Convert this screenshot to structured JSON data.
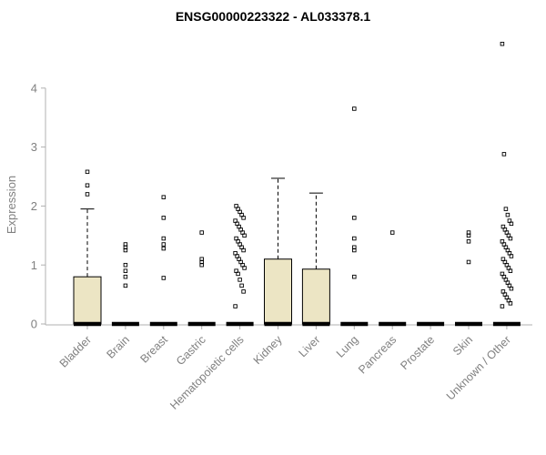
{
  "chart_data": {
    "type": "boxplot",
    "title": "ENSG00000223322 - AL033378.1",
    "ylabel": "Expression",
    "xlabel": "",
    "ylim": [
      0,
      4.9
    ],
    "yticks": [
      0,
      1,
      2,
      3,
      4
    ],
    "grid": false,
    "legend": "none",
    "box_fill": "#ece5c4",
    "box_stroke": "#000000",
    "axis_color": "#b0b0b0",
    "tick_label_color": "#808080",
    "categories": [
      "Bladder",
      "Brain",
      "Breast",
      "Gastric",
      "Hematopoietic cells",
      "Kidney",
      "Liver",
      "Lung",
      "Pancreas",
      "Prostate",
      "Skin",
      "Unknown / Other"
    ],
    "boxes": [
      {
        "category": "Bladder",
        "q1": 0,
        "median": 0,
        "q3": 0.8,
        "whisker_low": 0,
        "whisker_high": 1.95,
        "outliers": [
          2.2,
          2.35,
          2.58
        ]
      },
      {
        "category": "Brain",
        "q1": 0,
        "median": 0,
        "q3": 0,
        "whisker_low": 0,
        "whisker_high": 0,
        "outliers": [
          0.65,
          0.8,
          0.9,
          1.0,
          1.25,
          1.3,
          1.35
        ]
      },
      {
        "category": "Breast",
        "q1": 0,
        "median": 0,
        "q3": 0,
        "whisker_low": 0,
        "whisker_high": 0,
        "outliers": [
          0.78,
          1.28,
          1.35,
          1.45,
          1.8,
          2.15
        ]
      },
      {
        "category": "Gastric",
        "q1": 0,
        "median": 0,
        "q3": 0,
        "whisker_low": 0,
        "whisker_high": 0,
        "outliers": [
          1.0,
          1.05,
          1.1,
          1.55
        ]
      },
      {
        "category": "Hematopoietic cells",
        "q1": 0,
        "median": 0,
        "q3": 0,
        "whisker_low": 0,
        "whisker_high": 0,
        "outliers": [
          0.3,
          0.55,
          0.65,
          0.75,
          0.85,
          0.9,
          0.95,
          1.0,
          1.05,
          1.1,
          1.15,
          1.2,
          1.25,
          1.3,
          1.35,
          1.4,
          1.45,
          1.5,
          1.55,
          1.6,
          1.65,
          1.7,
          1.75,
          1.8,
          1.85,
          1.9,
          1.95,
          2.0
        ]
      },
      {
        "category": "Kidney",
        "q1": 0,
        "median": 0,
        "q3": 1.1,
        "whisker_low": 0,
        "whisker_high": 2.47,
        "outliers": []
      },
      {
        "category": "Liver",
        "q1": 0,
        "median": 0,
        "q3": 0.93,
        "whisker_low": 0,
        "whisker_high": 2.22,
        "outliers": []
      },
      {
        "category": "Lung",
        "q1": 0,
        "median": 0,
        "q3": 0,
        "whisker_low": 0,
        "whisker_high": 0,
        "outliers": [
          0.8,
          1.25,
          1.3,
          1.45,
          1.8,
          3.65
        ]
      },
      {
        "category": "Pancreas",
        "q1": 0,
        "median": 0,
        "q3": 0,
        "whisker_low": 0,
        "whisker_high": 0,
        "outliers": [
          1.55
        ]
      },
      {
        "category": "Prostate",
        "q1": 0,
        "median": 0,
        "q3": 0,
        "whisker_low": 0,
        "whisker_high": 0,
        "outliers": []
      },
      {
        "category": "Skin",
        "q1": 0,
        "median": 0,
        "q3": 0,
        "whisker_low": 0,
        "whisker_high": 0,
        "outliers": [
          1.05,
          1.4,
          1.5,
          1.55
        ]
      },
      {
        "category": "Unknown / Other",
        "q1": 0,
        "median": 0,
        "q3": 0,
        "whisker_low": 0,
        "whisker_high": 0,
        "outliers": [
          0.3,
          0.35,
          0.4,
          0.45,
          0.5,
          0.55,
          0.6,
          0.65,
          0.7,
          0.75,
          0.8,
          0.85,
          0.9,
          0.95,
          1.0,
          1.05,
          1.1,
          1.15,
          1.2,
          1.25,
          1.3,
          1.35,
          1.4,
          1.45,
          1.5,
          1.55,
          1.6,
          1.65,
          1.7,
          1.75,
          1.85,
          1.95,
          2.88,
          4.75
        ]
      }
    ]
  }
}
